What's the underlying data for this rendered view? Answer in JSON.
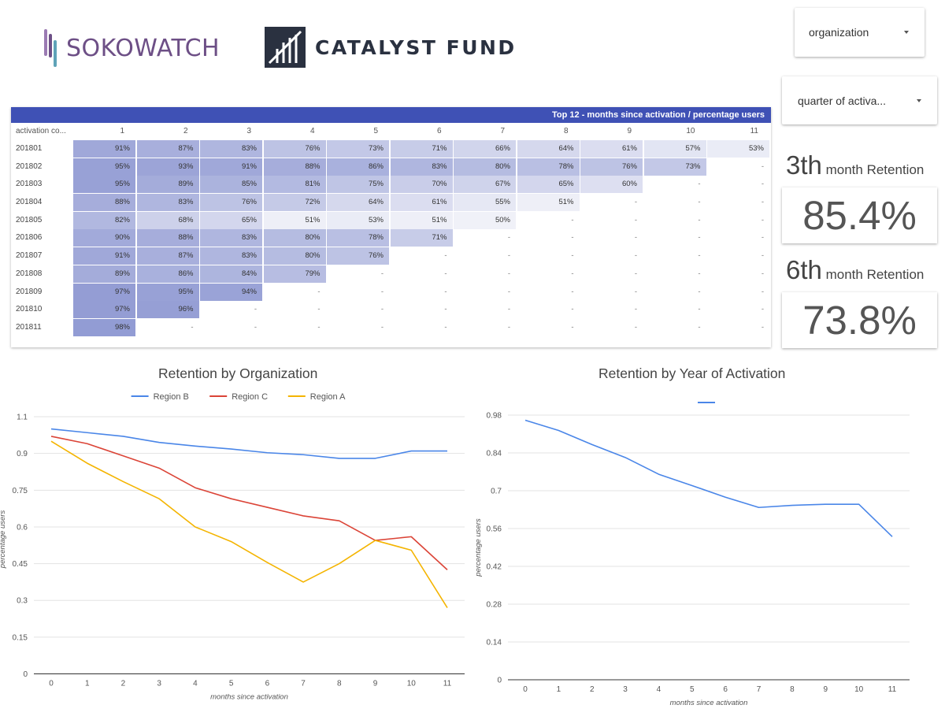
{
  "logos": {
    "sokowatch": "SOKOWATCH",
    "catalyst": "CATALYST FUND"
  },
  "filters": {
    "organization": "organization",
    "quarter": "quarter of activa..."
  },
  "cohort_table": {
    "title": "Top 12 - months since activation / percentage users",
    "row_header": "activation co...",
    "columns": [
      "1",
      "2",
      "3",
      "4",
      "5",
      "6",
      "7",
      "8",
      "9",
      "10",
      "11"
    ],
    "rows": [
      {
        "label": "201801",
        "values": [
          "91%",
          "87%",
          "83%",
          "76%",
          "73%",
          "71%",
          "66%",
          "64%",
          "61%",
          "57%",
          "53%"
        ]
      },
      {
        "label": "201802",
        "values": [
          "95%",
          "93%",
          "91%",
          "88%",
          "86%",
          "83%",
          "80%",
          "78%",
          "76%",
          "73%",
          "-"
        ]
      },
      {
        "label": "201803",
        "values": [
          "95%",
          "89%",
          "85%",
          "81%",
          "75%",
          "70%",
          "67%",
          "65%",
          "60%",
          "-",
          "-"
        ]
      },
      {
        "label": "201804",
        "values": [
          "88%",
          "83%",
          "76%",
          "72%",
          "64%",
          "61%",
          "55%",
          "51%",
          "-",
          "-",
          "-"
        ]
      },
      {
        "label": "201805",
        "values": [
          "82%",
          "68%",
          "65%",
          "51%",
          "53%",
          "51%",
          "50%",
          "-",
          "-",
          "-",
          "-"
        ]
      },
      {
        "label": "201806",
        "values": [
          "90%",
          "88%",
          "83%",
          "80%",
          "78%",
          "71%",
          "-",
          "-",
          "-",
          "-",
          "-"
        ]
      },
      {
        "label": "201807",
        "values": [
          "91%",
          "87%",
          "83%",
          "80%",
          "76%",
          "-",
          "-",
          "-",
          "-",
          "-",
          "-"
        ]
      },
      {
        "label": "201808",
        "values": [
          "89%",
          "86%",
          "84%",
          "79%",
          "-",
          "-",
          "-",
          "-",
          "-",
          "-",
          "-"
        ]
      },
      {
        "label": "201809",
        "values": [
          "97%",
          "95%",
          "94%",
          "-",
          "-",
          "-",
          "-",
          "-",
          "-",
          "-",
          "-"
        ]
      },
      {
        "label": "201810",
        "values": [
          "97%",
          "96%",
          "-",
          "-",
          "-",
          "-",
          "-",
          "-",
          "-",
          "-",
          "-"
        ]
      },
      {
        "label": "201811",
        "values": [
          "98%",
          "-",
          "-",
          "-",
          "-",
          "-",
          "-",
          "-",
          "-",
          "-",
          "-"
        ]
      }
    ]
  },
  "kpis": [
    {
      "ordinal": "3th",
      "label": "month Retention",
      "value": "85.4%"
    },
    {
      "ordinal": "6th",
      "label": "month Retention",
      "value": "73.8%"
    }
  ],
  "colors": {
    "header": "#3f51b5",
    "region_b": "#4a86e8",
    "region_c": "#db4437",
    "region_a": "#f4b400",
    "year_line": "#4a86e8"
  },
  "chart_data": [
    {
      "type": "line",
      "title": "Retention by Organization",
      "xlabel": "months since activation",
      "ylabel": "percentage users",
      "x": [
        0,
        1,
        2,
        3,
        4,
        5,
        6,
        7,
        8,
        9,
        10,
        11
      ],
      "ylim": [
        0,
        1.1
      ],
      "yticks": [
        "0",
        "0.15",
        "0.3",
        "0.45",
        "0.6",
        "0.75",
        "0.9",
        "1.1"
      ],
      "ytick_values": [
        0,
        0.15,
        0.3,
        0.45,
        0.6,
        0.75,
        0.9,
        1.05
      ],
      "legend": "top",
      "grid": true,
      "series": [
        {
          "name": "Region B",
          "color": "#4a86e8",
          "values": [
            1.0,
            0.985,
            0.97,
            0.945,
            0.93,
            0.918,
            0.903,
            0.895,
            0.88,
            0.88,
            0.91,
            0.91
          ]
        },
        {
          "name": "Region C",
          "color": "#db4437",
          "values": [
            0.97,
            0.94,
            0.89,
            0.84,
            0.76,
            0.715,
            0.68,
            0.645,
            0.625,
            0.545,
            0.56,
            0.425
          ]
        },
        {
          "name": "Region A",
          "color": "#f4b400",
          "values": [
            0.95,
            0.86,
            0.785,
            0.715,
            0.6,
            0.54,
            0.455,
            0.375,
            0.45,
            0.545,
            0.505,
            0.27
          ]
        }
      ]
    },
    {
      "type": "line",
      "title": "Retention by Year of Activation",
      "xlabel": "months since activation",
      "ylabel": "percentage users",
      "x": [
        0,
        1,
        2,
        3,
        4,
        5,
        6,
        7,
        8,
        9,
        10,
        11
      ],
      "ylim": [
        0,
        0.98
      ],
      "yticks": [
        "0",
        "0.14",
        "0.28",
        "0.42",
        "0.56",
        "0.7",
        "0.84",
        "0.98"
      ],
      "ytick_values": [
        0,
        0.14,
        0.28,
        0.42,
        0.56,
        0.7,
        0.84,
        0.98
      ],
      "legend": "top",
      "grid": true,
      "series": [
        {
          "name": "",
          "color": "#4a86e8",
          "values": [
            0.961,
            0.923,
            0.871,
            0.823,
            0.761,
            0.719,
            0.676,
            0.638,
            0.646,
            0.65,
            0.65,
            0.53
          ]
        }
      ]
    }
  ]
}
